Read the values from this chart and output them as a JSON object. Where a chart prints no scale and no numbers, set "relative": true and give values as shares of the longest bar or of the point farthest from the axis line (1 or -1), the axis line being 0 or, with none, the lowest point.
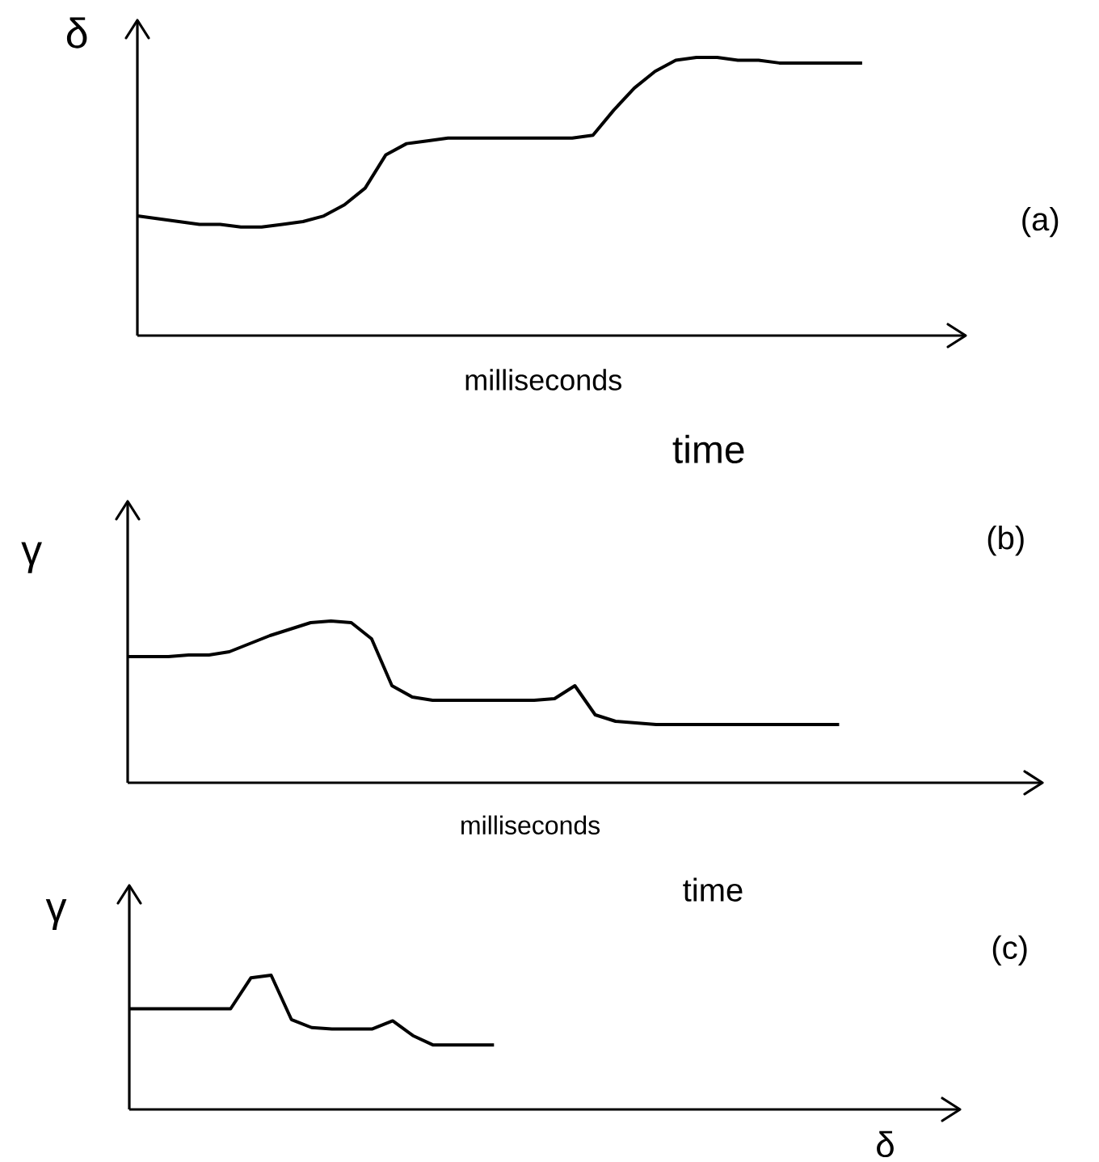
{
  "chart_data": [
    {
      "type": "line",
      "relative": true,
      "color": "#000000",
      "ylabel": "δ",
      "xlabel": "milliseconds",
      "annotations": [
        "time",
        "(a)"
      ],
      "categories": [
        null,
        null,
        null,
        null,
        null,
        null,
        null,
        null,
        null,
        null,
        null,
        null,
        null,
        null,
        null,
        null,
        null,
        null,
        null,
        null,
        null,
        null,
        null,
        null,
        null,
        null,
        null,
        null,
        null,
        null,
        null,
        null,
        null,
        null,
        null,
        null,
        null,
        null,
        null,
        null,
        null
      ],
      "values": [
        0.43,
        0.42,
        0.41,
        0.4,
        0.4,
        0.39,
        0.39,
        0.4,
        0.41,
        0.43,
        0.47,
        0.53,
        0.65,
        0.69,
        0.7,
        0.71,
        0.71,
        0.71,
        0.71,
        0.71,
        0.71,
        0.71,
        0.72,
        0.81,
        0.89,
        0.95,
        0.99,
        1,
        1,
        0.99,
        0.99,
        0.98,
        0.98,
        0.98,
        0.98,
        0.98,
        null,
        null,
        null,
        null,
        null
      ]
    },
    {
      "type": "line",
      "relative": true,
      "color": "#000000",
      "ylabel": "γ",
      "xlabel": "milliseconds",
      "annotations": [
        "time",
        "(b)"
      ],
      "categories": [
        null,
        null,
        null,
        null,
        null,
        null,
        null,
        null,
        null,
        null,
        null,
        null,
        null,
        null,
        null,
        null,
        null,
        null,
        null,
        null,
        null,
        null,
        null,
        null,
        null,
        null,
        null,
        null,
        null,
        null,
        null,
        null,
        null,
        null,
        null,
        null,
        null,
        null,
        null,
        null,
        null,
        null,
        null,
        null,
        null,
        null
      ],
      "values": [
        0.78,
        0.78,
        0.78,
        0.79,
        0.79,
        0.81,
        0.86,
        0.91,
        0.95,
        0.99,
        1,
        0.99,
        0.89,
        0.6,
        0.53,
        0.51,
        0.51,
        0.51,
        0.51,
        0.51,
        0.51,
        0.52,
        0.6,
        0.42,
        0.38,
        0.37,
        0.36,
        0.36,
        0.36,
        0.36,
        0.36,
        0.36,
        0.36,
        0.36,
        0.36,
        0.36,
        null,
        null,
        null,
        null,
        null,
        null,
        null,
        null,
        null,
        null
      ]
    },
    {
      "type": "line",
      "relative": true,
      "color": "#000000",
      "ylabel": "γ",
      "xlabel": "δ",
      "annotations": [
        "(c)"
      ],
      "categories": [
        null,
        null,
        null,
        null,
        null,
        null,
        null,
        null,
        null,
        null,
        null,
        null,
        null,
        null,
        null,
        null,
        null,
        null,
        null,
        null,
        null,
        null,
        null,
        null,
        null,
        null,
        null,
        null,
        null,
        null,
        null,
        null,
        null,
        null,
        null,
        null,
        null,
        null,
        null,
        null,
        null,
        null
      ],
      "values": [
        0.75,
        0.75,
        0.75,
        0.75,
        0.75,
        0.75,
        0.98,
        1,
        0.67,
        0.61,
        0.6,
        0.6,
        0.6,
        0.66,
        0.55,
        0.48,
        0.48,
        0.48,
        0.48,
        null,
        null,
        null,
        null,
        null,
        null,
        null,
        null,
        null,
        null,
        null,
        null,
        null,
        null,
        null,
        null,
        null,
        null,
        null,
        null,
        null,
        null,
        null
      ]
    }
  ]
}
